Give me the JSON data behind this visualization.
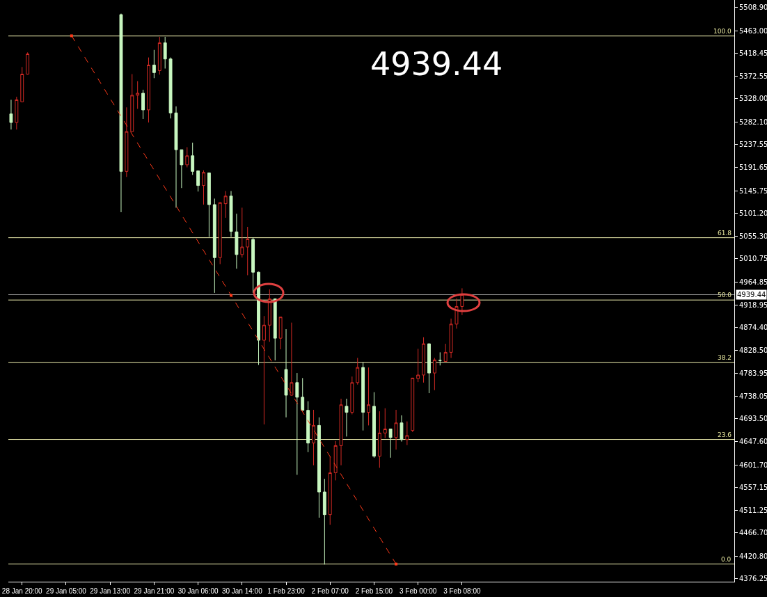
{
  "chart_data": {
    "type": "candlestick",
    "categories": [
      null,
      null,
      "28 Jan 20:00",
      null,
      null,
      null,
      null,
      null,
      null,
      null,
      "29 Jan 05:00",
      null,
      null,
      null,
      null,
      null,
      null,
      null,
      "29 Jan 13:00",
      null,
      null,
      null,
      null,
      null,
      null,
      null,
      "29 Jan 21:00",
      null,
      null,
      null,
      null,
      null,
      null,
      null,
      "30 Jan 06:00",
      null,
      null,
      null,
      null,
      null,
      null,
      null,
      "30 Jan 14:00",
      null,
      null,
      null,
      null,
      null,
      null,
      null,
      "1 Feb 23:00",
      null,
      null,
      null,
      null,
      null,
      null,
      null,
      "2 Feb 07:00",
      null,
      null,
      null,
      null,
      null,
      null,
      null,
      "2 Feb 15:00",
      null,
      null,
      null,
      null,
      null,
      null,
      null,
      "3 Feb 00:00",
      null,
      null,
      null,
      null,
      null,
      null,
      null,
      "3 Feb 08:00",
      null,
      null,
      null,
      null,
      null,
      null,
      null,
      null,
      null,
      null,
      null,
      null,
      null,
      null,
      null,
      null,
      null,
      null,
      null,
      null,
      null,
      null,
      null,
      null,
      null,
      null,
      null,
      null,
      null,
      null,
      null,
      null,
      null,
      null,
      null,
      null,
      null,
      null,
      null,
      null,
      null,
      null,
      null,
      null,
      null,
      null,
      null,
      null,
      null
    ],
    "ohlc": [
      [
        5298,
        5326,
        5267,
        5281
      ],
      [
        5281,
        5332,
        5267,
        5326
      ],
      [
        5322,
        5391,
        5321,
        5377
      ],
      [
        5377,
        5420,
        5376,
        5417
      ],
      null,
      null,
      null,
      null,
      null,
      null,
      null,
      null,
      null,
      null,
      null,
      null,
      null,
      null,
      null,
      null,
      [
        5495,
        5497,
        5103,
        5184
      ],
      [
        5184,
        5311,
        5173,
        5263
      ],
      [
        5263,
        5377,
        5263,
        5335
      ],
      [
        5335,
        5363,
        5308,
        5339
      ],
      [
        5339,
        5346,
        5288,
        5306
      ],
      [
        5306,
        5410,
        5281,
        5395
      ],
      [
        5395,
        5425,
        5369,
        5380
      ],
      [
        5384,
        5451,
        5376,
        5439
      ],
      [
        5439,
        5451,
        5388,
        5407
      ],
      [
        5407,
        5410,
        5289,
        5300
      ],
      [
        5300,
        5313,
        5112,
        5227
      ],
      [
        5227,
        5227,
        5151,
        5197
      ],
      [
        5197,
        5232,
        5192,
        5215
      ],
      [
        5215,
        5241,
        5177,
        5184
      ],
      [
        5185,
        5185,
        5144,
        5156
      ],
      [
        5156,
        5186,
        5118,
        5182
      ],
      [
        5181,
        5181,
        5054,
        5118
      ],
      [
        5118,
        5130,
        4943,
        5013
      ],
      [
        5013,
        5123,
        5000,
        5122
      ],
      [
        5120,
        5145,
        5092,
        5135
      ],
      [
        5135,
        5145,
        5054,
        5065
      ],
      [
        5064,
        5100,
        4991,
        5019
      ],
      [
        5019,
        5112,
        5013,
        5034
      ],
      [
        5034,
        5074,
        4978,
        5050
      ],
      [
        5049,
        5053,
        4943,
        4984
      ],
      [
        4984,
        4985,
        4800,
        4849
      ],
      [
        4849,
        4897,
        4682,
        4879
      ],
      [
        4879,
        4950,
        4846,
        4931
      ],
      [
        4931,
        4932,
        4809,
        4853
      ],
      [
        4853,
        4895,
        4831,
        4895
      ],
      [
        4791,
        4871,
        4696,
        4740
      ],
      [
        4740,
        4884,
        4739,
        4765
      ],
      [
        4765,
        4784,
        4582,
        4736
      ],
      [
        4736,
        4774,
        4710,
        4710
      ],
      [
        4710,
        4728,
        4627,
        4645
      ],
      [
        4645,
        4711,
        4601,
        4680
      ],
      [
        4680,
        4696,
        4497,
        4548
      ],
      [
        4548,
        4574,
        4404,
        4503
      ],
      [
        4503,
        4618,
        4483,
        4586
      ],
      [
        4586,
        4649,
        4571,
        4640
      ],
      [
        4640,
        4733,
        4601,
        4721
      ],
      [
        4718,
        4733,
        4658,
        4706
      ],
      [
        4706,
        4777,
        4702,
        4765
      ],
      [
        4765,
        4814,
        4761,
        4795
      ],
      [
        4795,
        4805,
        4670,
        4706
      ],
      [
        4706,
        4795,
        4680,
        4721
      ],
      [
        4718,
        4746,
        4616,
        4619
      ],
      [
        4619,
        4708,
        4596,
        4665
      ],
      [
        4665,
        4714,
        4655,
        4673
      ],
      [
        4673,
        4673,
        4616,
        4656
      ],
      [
        4656,
        4711,
        4632,
        4685
      ],
      [
        4685,
        4700,
        4648,
        4652
      ],
      [
        4652,
        4688,
        4641,
        4660
      ],
      [
        4670,
        4774,
        4667,
        4774
      ],
      [
        4773,
        4832,
        4766,
        4780
      ],
      [
        4780,
        4855,
        4765,
        4842
      ],
      [
        4842,
        4842,
        4744,
        4784
      ],
      [
        4784,
        4814,
        4750,
        4810
      ],
      [
        4809,
        4825,
        4799,
        4809
      ],
      [
        4807,
        4842,
        4806,
        4825
      ],
      [
        4825,
        4892,
        4814,
        4881
      ],
      [
        4881,
        4932,
        4872,
        4916
      ],
      [
        4916,
        4952,
        4899,
        4939.44
      ],
      null,
      null,
      null,
      null,
      null,
      null,
      null,
      null,
      null,
      null,
      null,
      null,
      null,
      null,
      null,
      null,
      null,
      null,
      null,
      null,
      null,
      null,
      null,
      null,
      null,
      null,
      null,
      null,
      null,
      null,
      null,
      null,
      null,
      null,
      null,
      null,
      null,
      null,
      null,
      null,
      null,
      null,
      null,
      null,
      null,
      null,
      null,
      null,
      null
    ],
    "colors": [
      "#c8f7c0",
      "#d42a24",
      "#d42a24",
      "#d42a24",
      null,
      null,
      null,
      null,
      null,
      null,
      null,
      null,
      null,
      null,
      null,
      null,
      null,
      null,
      null,
      null,
      "#c8f7c0",
      "#d42a24",
      "#d42a24",
      "#d42a24",
      "#c8f7c0",
      "#d42a24",
      "#c8f7c0",
      "#d42a24",
      "#c8f7c0",
      "#c8f7c0",
      "#c8f7c0",
      "#c8f7c0",
      "#d42a24",
      "#c8f7c0",
      "#c8f7c0",
      "#d42a24",
      "#c8f7c0",
      "#c8f7c0",
      "#d42a24",
      "#d42a24",
      "#c8f7c0",
      "#c8f7c0",
      "#d42a24",
      "#d42a24",
      "#c8f7c0",
      "#c8f7c0",
      "#d42a24",
      "#d42a24",
      "#c8f7c0",
      "#d42a24",
      "#c8f7c0",
      "#d42a24",
      "#c8f7c0",
      "#c8f7c0",
      "#c8f7c0",
      "#d42a24",
      "#c8f7c0",
      "#c8f7c0",
      "#d42a24",
      "#d42a24",
      "#d42a24",
      "#c8f7c0",
      "#d42a24",
      "#d42a24",
      "#c8f7c0",
      "#d42a24",
      "#c8f7c0",
      "#d42a24",
      "#d42a24",
      "#c8f7c0",
      "#d42a24",
      "#c8f7c0",
      "#d42a24",
      "#d42a24",
      "#d42a24",
      "#d42a24",
      "#c8f7c0",
      "#d42a24",
      "#c8f7c0",
      "#d42a24",
      "#d42a24",
      "#d42a24",
      "#d42a24",
      null,
      null,
      null,
      null,
      null,
      null,
      null,
      null,
      null,
      null,
      null,
      null,
      null,
      null,
      null,
      null,
      null,
      null,
      null,
      null,
      null,
      null,
      null,
      null,
      null,
      null,
      null,
      null,
      null,
      null,
      null,
      null,
      null,
      null,
      null,
      null,
      null,
      null,
      null,
      null,
      null,
      null,
      null,
      null,
      null,
      null,
      null,
      null,
      null
    ],
    "series": [
      {
        "type": "line",
        "color": "#ff3a1a",
        "line_style": "dashed",
        "marker": "square",
        "values": [
          null,
          null,
          null,
          null,
          null,
          null,
          null,
          null,
          null,
          null,
          null,
          5453,
          null,
          null,
          null,
          null,
          null,
          null,
          null,
          null,
          null,
          null,
          null,
          null,
          null,
          null,
          null,
          null,
          null,
          null,
          null,
          null,
          null,
          null,
          null,
          null,
          null,
          null,
          null,
          null,
          4938,
          null,
          null,
          null,
          null,
          null,
          null,
          null,
          null,
          null,
          null,
          null,
          null,
          null,
          null,
          null,
          null,
          null,
          null,
          null,
          null,
          null,
          null,
          null,
          null,
          null,
          null,
          null,
          null,
          null,
          4405,
          null,
          null,
          null,
          null,
          null,
          null,
          null,
          null,
          null,
          null,
          null,
          null,
          null,
          null,
          null,
          null,
          null,
          null,
          null,
          null,
          null,
          null,
          null,
          null,
          null,
          null,
          null,
          null,
          null,
          null,
          null,
          null,
          null,
          null,
          null,
          null,
          null,
          null,
          null,
          null,
          null,
          null,
          null,
          null,
          null,
          null,
          null,
          null,
          null,
          null,
          null,
          null,
          null,
          null,
          null,
          null,
          null,
          null,
          null,
          null,
          null
        ]
      }
    ],
    "ylim": [
      4370,
      5524
    ],
    "yticks": [
      {
        "value": 5508.9,
        "label": "5508.90"
      },
      {
        "value": 5463,
        "label": "5463.00"
      },
      {
        "value": 5418.45,
        "label": "5418.45"
      },
      {
        "value": 5372.55,
        "label": "5372.55"
      },
      {
        "value": 5328,
        "label": "5328.00"
      },
      {
        "value": 5282.1,
        "label": "5282.10"
      },
      {
        "value": 5237.55,
        "label": "5237.55"
      },
      {
        "value": 5191.65,
        "label": "5191.65"
      },
      {
        "value": 5145.75,
        "label": "5145.75"
      },
      {
        "value": 5101.2,
        "label": "5101.20"
      },
      {
        "value": 5055.3,
        "label": "5055.30"
      },
      {
        "value": 5010.75,
        "label": "5010.75"
      },
      {
        "value": 4964.85,
        "label": "4964.85"
      },
      {
        "value": 4918.95,
        "label": "4918.95"
      },
      {
        "value": 4874.4,
        "label": "4874.40"
      },
      {
        "value": 4828.5,
        "label": "4828.50"
      },
      {
        "value": 4783.95,
        "label": "4783.95"
      },
      {
        "value": 4738.05,
        "label": "4738.05"
      },
      {
        "value": 4693.5,
        "label": "4693.50"
      },
      {
        "value": 4647.6,
        "label": "4647.60"
      },
      {
        "value": 4601.7,
        "label": "4601.70"
      },
      {
        "value": 4557.15,
        "label": "4557.15"
      },
      {
        "value": 4511.25,
        "label": "4511.25"
      },
      {
        "value": 4466.7,
        "label": "4466.70"
      },
      {
        "value": 4420.8,
        "label": "4420.80"
      },
      {
        "value": 4376.25,
        "label": "4376.25"
      }
    ],
    "ref_lines": [
      {
        "axis": "y",
        "value": 5452.6,
        "color": "#f0f0b0"
      },
      {
        "axis": "y",
        "value": 5052.4,
        "color": "#f0f0b0"
      },
      {
        "axis": "y",
        "value": 4928.8,
        "color": "#f0f0b0"
      },
      {
        "axis": "y",
        "value": 4805.2,
        "color": "#f0f0b0"
      },
      {
        "axis": "y",
        "value": 4652.2,
        "color": "#f0f0b0"
      },
      {
        "axis": "y",
        "value": 4405,
        "color": "#f0f0b0"
      },
      {
        "axis": "y",
        "value": 4939.44,
        "label": "4939.44",
        "color": "#9a9a9a"
      }
    ],
    "annotations": [
      "4939.44",
      {
        "text": "100.0",
        "y": 5452.6
      },
      {
        "text": "61.8",
        "y": 5052.4
      },
      {
        "text": "50.0",
        "y": 4928.8
      },
      {
        "text": "38.2",
        "y": 4805.2
      },
      {
        "text": "23.6",
        "y": 4652.2
      },
      {
        "text": "0.0",
        "y": 4405
      }
    ]
  }
}
